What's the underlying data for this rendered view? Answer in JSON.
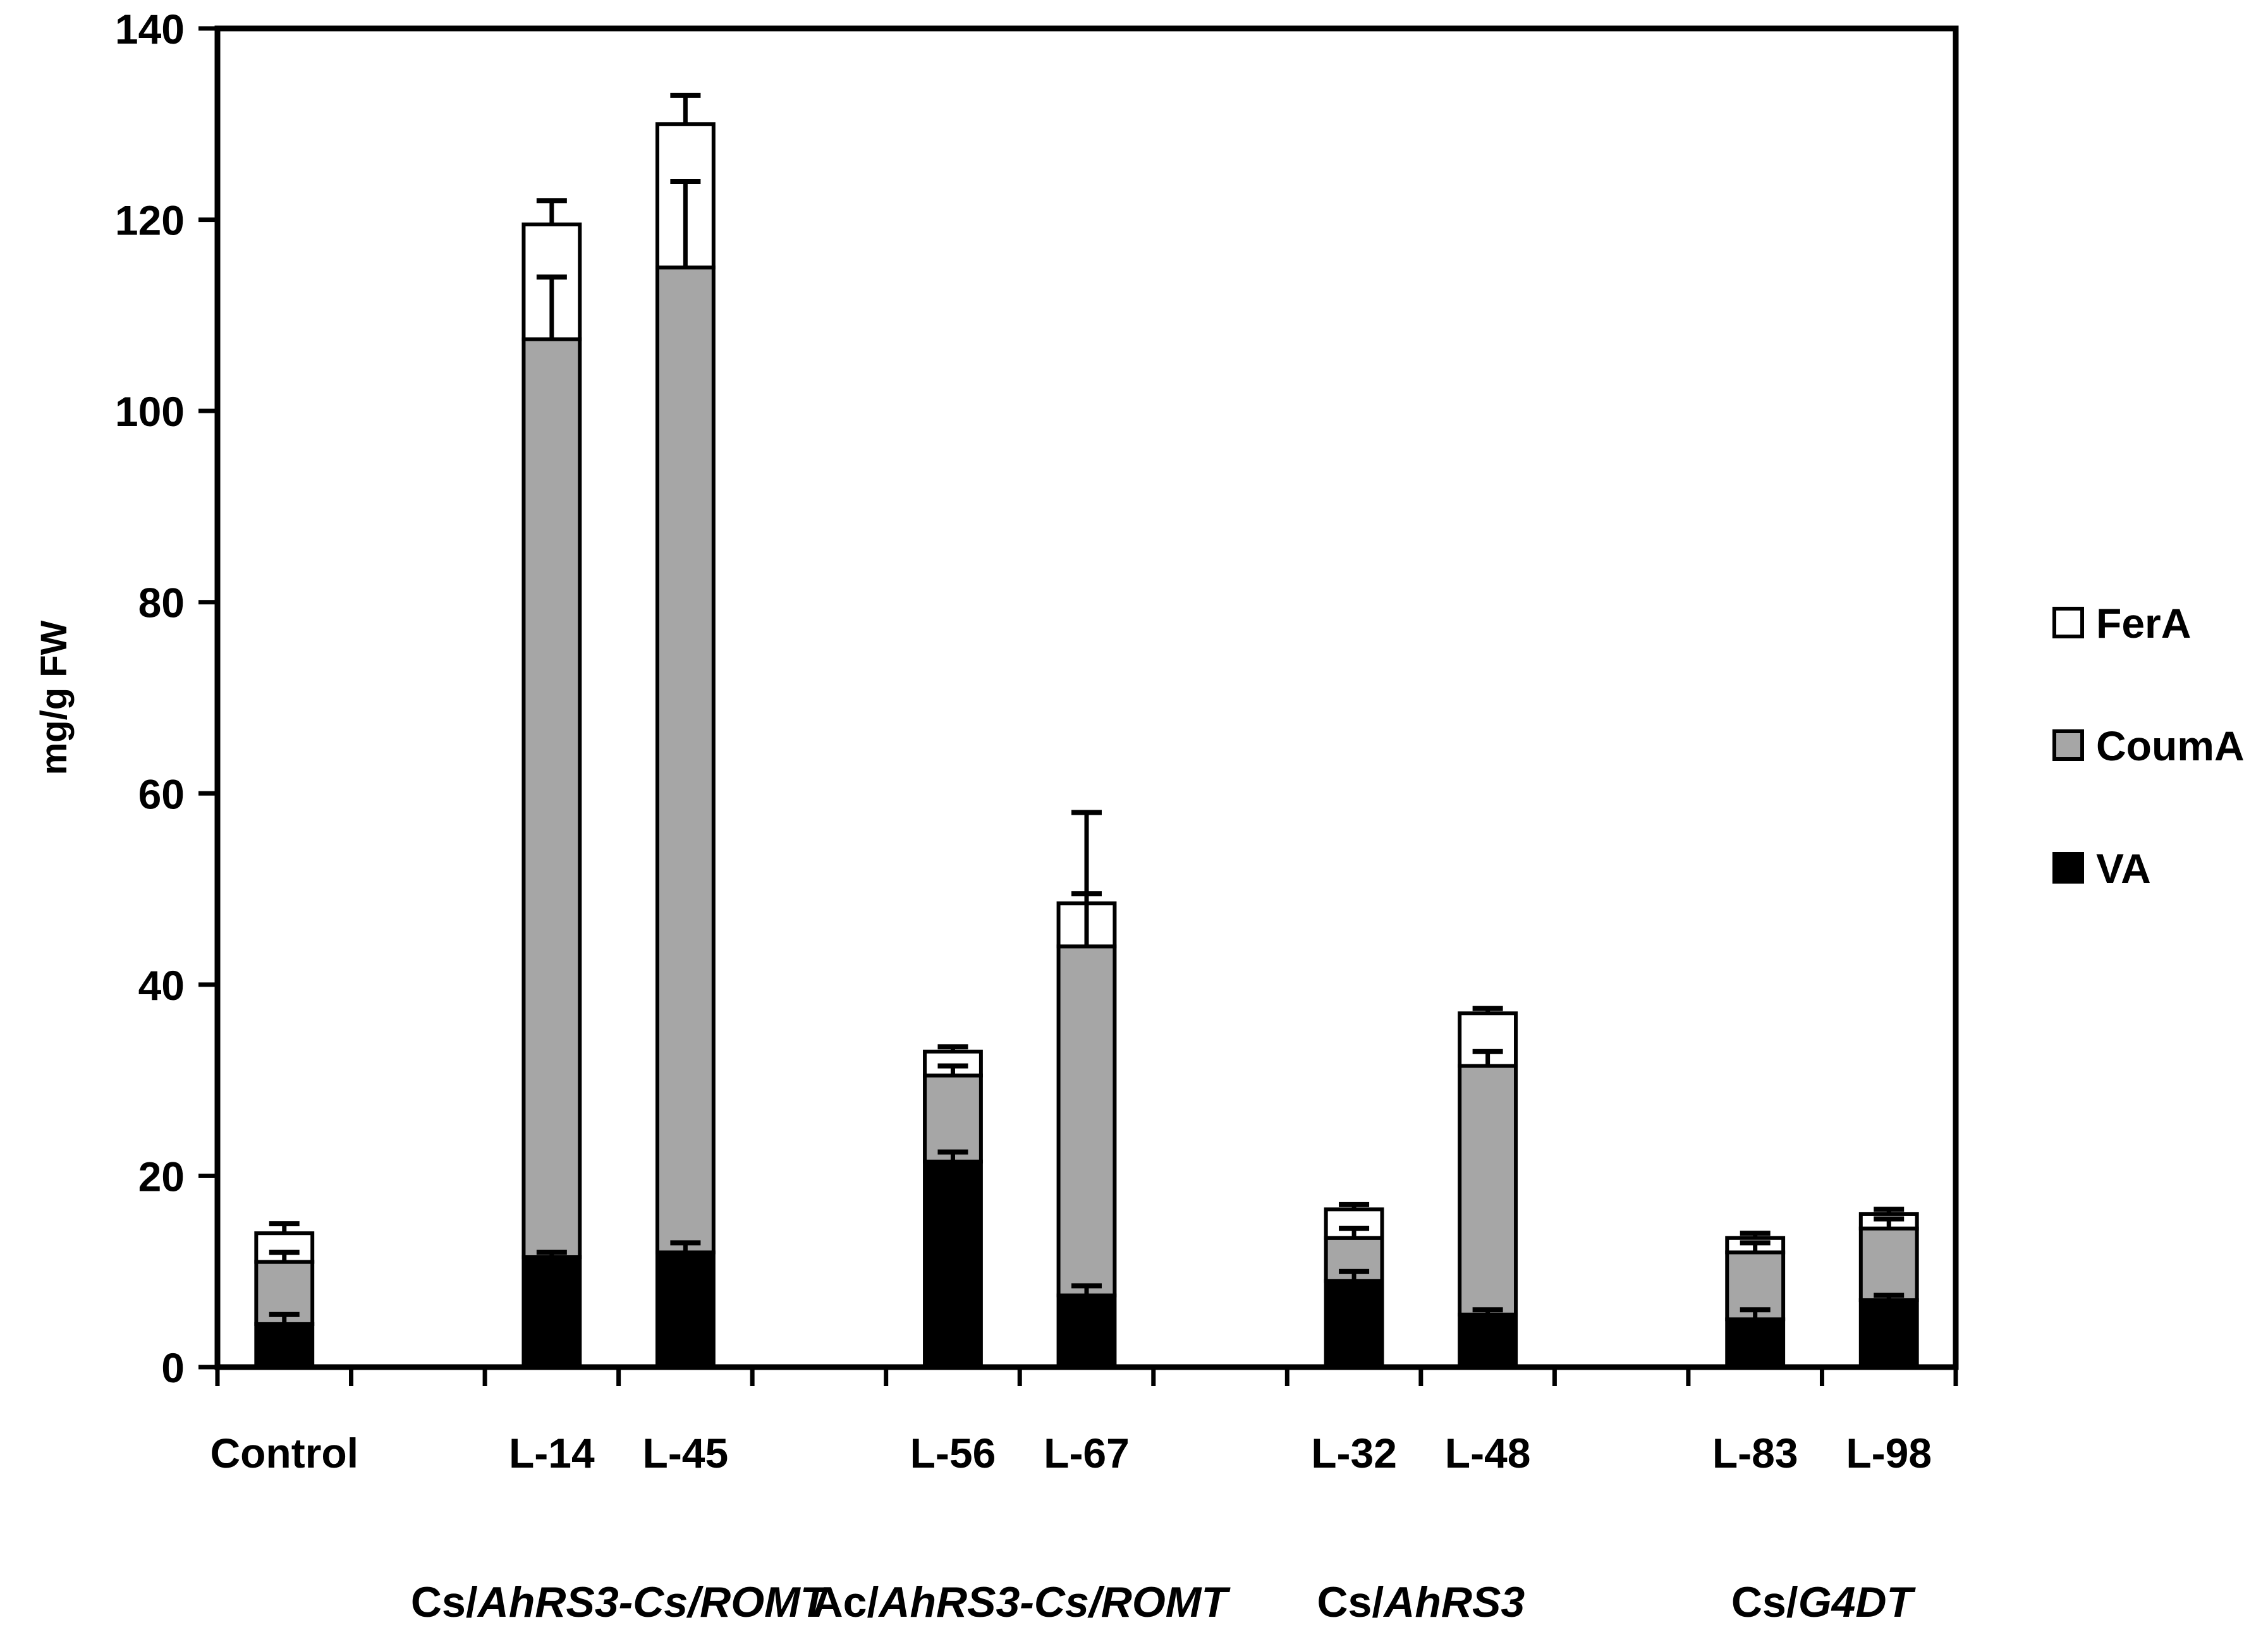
{
  "chart_data": {
    "type": "bar",
    "stacked": true,
    "title": "",
    "xlabel": "",
    "ylabel": "mg/g FW",
    "ylim": [
      0,
      140
    ],
    "yticks": [
      0,
      20,
      40,
      60,
      80,
      100,
      120,
      140
    ],
    "grid": false,
    "legend_position": "right",
    "categories": [
      "Control",
      "",
      "L-14",
      "L-45",
      "",
      "L-56",
      "L-67",
      "",
      "L-32",
      "L-48",
      "",
      "L-83",
      "L-98"
    ],
    "groups": [
      {
        "label_parts": [
          {
            "text": "Cs/",
            "italic": false
          },
          {
            "text": "AhRS3-Cs/ROMT",
            "italic": true
          }
        ]
      },
      {
        "label_parts": [
          {
            "text": "Ac/",
            "italic": false
          },
          {
            "text": "AhRS3-Cs/ROMT",
            "italic": true
          }
        ]
      },
      {
        "label_parts": [
          {
            "text": "Cs/",
            "italic": false
          },
          {
            "text": "AhRS3",
            "italic": true
          }
        ]
      },
      {
        "label_parts": [
          {
            "text": "Cs/",
            "italic": false
          },
          {
            "text": "G4DT",
            "italic": true
          }
        ]
      }
    ],
    "series": [
      {
        "name": "VA",
        "color": "#000000",
        "values": [
          4.5,
          null,
          11.5,
          12.0,
          null,
          21.5,
          7.5,
          null,
          9.0,
          5.5,
          null,
          5.0,
          7.0
        ],
        "errors": [
          1.0,
          null,
          0.5,
          1.0,
          null,
          1.0,
          1.0,
          null,
          1.0,
          0.5,
          null,
          1.0,
          0.5
        ]
      },
      {
        "name": "CoumA",
        "color": "#a6a6a6",
        "values": [
          6.5,
          null,
          96.0,
          103.0,
          null,
          9.0,
          36.5,
          null,
          4.5,
          26.0,
          null,
          7.0,
          7.5
        ],
        "errors": [
          1.0,
          null,
          6.5,
          9.0,
          null,
          1.0,
          5.5,
          null,
          1.0,
          1.5,
          null,
          1.0,
          1.0
        ]
      },
      {
        "name": "FerA",
        "color": "#ffffff",
        "values": [
          3.0,
          null,
          12.0,
          15.0,
          null,
          2.5,
          4.5,
          null,
          3.0,
          5.5,
          null,
          1.5,
          1.5
        ],
        "errors": [
          1.0,
          null,
          2.5,
          3.0,
          null,
          0.5,
          9.5,
          null,
          0.5,
          0.5,
          null,
          0.5,
          0.5
        ]
      }
    ]
  }
}
